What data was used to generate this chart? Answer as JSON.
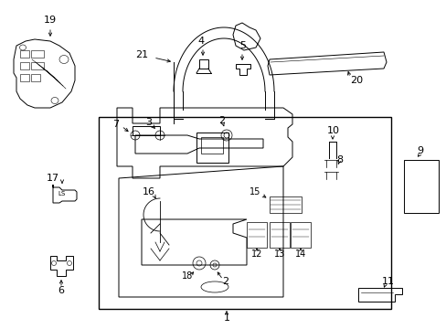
{
  "background_color": "#ffffff",
  "line_color": "#000000",
  "figsize": [
    4.89,
    3.6
  ],
  "dpi": 100,
  "lw": 0.7
}
